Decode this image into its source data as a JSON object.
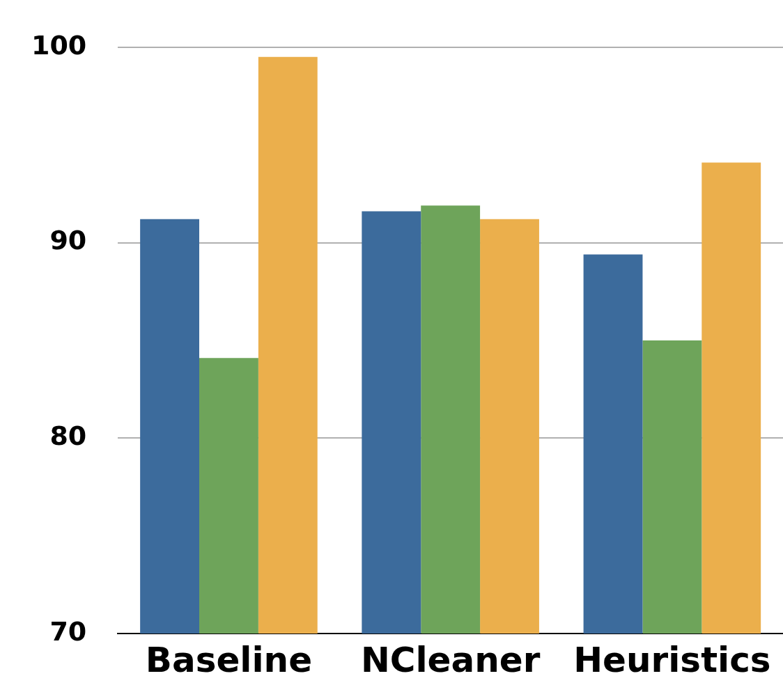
{
  "chart_data": {
    "type": "bar",
    "categories": [
      "Baseline",
      "NCleaner",
      "Heuristics"
    ],
    "series": [
      {
        "color": "#3c6b9c",
        "values": [
          91.2,
          91.6,
          89.4
        ]
      },
      {
        "color": "#6ea45a",
        "values": [
          84.1,
          91.9,
          85.0
        ]
      },
      {
        "color": "#ebaf4c",
        "values": [
          99.5,
          91.2,
          94.1
        ]
      }
    ],
    "ylim": [
      70,
      100
    ],
    "yticks": [
      70,
      80,
      90,
      100
    ],
    "grid": "y",
    "legend": false
  }
}
